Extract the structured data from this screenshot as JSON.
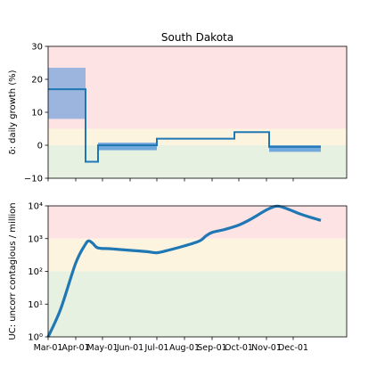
{
  "chart_data": [
    {
      "type": "line",
      "title": "South Dakota",
      "ylabel": "δ: daily growth (%)",
      "ylim": [
        -10,
        30
      ],
      "yticks": [
        "−10",
        "0",
        "10",
        "20",
        "30"
      ],
      "ytick_values": [
        -10,
        0,
        10,
        20,
        30
      ],
      "xlim_days": [
        0,
        335
      ],
      "x_axis_start": "2020-03-01",
      "x_axis_end": "2021-01-01",
      "bands": [
        {
          "name": "high",
          "from": 5,
          "to": 30,
          "color": "#fde3e4"
        },
        {
          "name": "medium",
          "from": 0,
          "to": 5,
          "color": "#fdf4e0"
        },
        {
          "name": "low",
          "from": -10,
          "to": 0,
          "color": "#e6f1e2"
        }
      ],
      "series": [
        {
          "type": "step",
          "color": "#1f77b4",
          "points": [
            [
              "2020-03-01",
              17
            ],
            [
              "2020-04-12",
              17
            ],
            [
              "2020-04-12",
              -5
            ],
            [
              "2020-04-26",
              -5
            ],
            [
              "2020-04-26",
              0
            ],
            [
              "2020-07-01",
              0
            ],
            [
              "2020-07-01",
              2
            ],
            [
              "2020-09-26",
              2
            ],
            [
              "2020-09-26",
              4
            ],
            [
              "2020-11-04",
              4
            ],
            [
              "2020-11-04",
              -0.5
            ],
            [
              "2021-01-01",
              -0.5
            ]
          ]
        }
      ],
      "uncertainty": [
        {
          "from": "2020-03-01",
          "to": "2020-04-12",
          "low": 8,
          "high": 23.5
        },
        {
          "from": "2020-04-26",
          "to": "2020-07-01",
          "low": -1.5,
          "high": 0.8
        },
        {
          "from": "2020-11-04",
          "to": "2021-01-01",
          "low": -2,
          "high": 0
        }
      ],
      "uncertainty_color": "#4a90d9"
    },
    {
      "type": "line",
      "ylabel": "UC: uncorr contagious / million",
      "yscale": "log",
      "ylim": [
        1,
        10000
      ],
      "yticks": [
        "10⁰",
        "10¹",
        "10²",
        "10³",
        "10⁴"
      ],
      "ytick_values": [
        1,
        10,
        100,
        1000,
        10000
      ],
      "xlabels": [
        "Mar-01",
        "Apr-01",
        "May-01",
        "Jun-01",
        "Jul-01",
        "Aug-01",
        "Sep-01",
        "Oct-01",
        "Nov-01",
        "Dec-01"
      ],
      "xlabel_dates": [
        "2020-03-01",
        "2020-04-01",
        "2020-05-01",
        "2020-06-01",
        "2020-07-01",
        "2020-08-01",
        "2020-09-01",
        "2020-10-01",
        "2020-11-01",
        "2020-12-01"
      ],
      "xlim_days": [
        0,
        335
      ],
      "bands": [
        {
          "name": "high",
          "from": 1000,
          "to": 10000,
          "color": "#fde3e4"
        },
        {
          "name": "medium",
          "from": 100,
          "to": 1000,
          "color": "#fdf4e0"
        },
        {
          "name": "low",
          "from": 1,
          "to": 100,
          "color": "#e6f1e2"
        }
      ],
      "series": [
        {
          "type": "line",
          "color": "#1f77b4",
          "points": [
            [
              "2020-03-01",
              1.0
            ],
            [
              "2020-03-15",
              7
            ],
            [
              "2020-04-01",
              180
            ],
            [
              "2020-04-12",
              680
            ],
            [
              "2020-04-16",
              850
            ],
            [
              "2020-04-20",
              720
            ],
            [
              "2020-04-26",
              520
            ],
            [
              "2020-05-10",
              490
            ],
            [
              "2020-06-01",
              440
            ],
            [
              "2020-06-20",
              400
            ],
            [
              "2020-07-01",
              370
            ],
            [
              "2020-07-15",
              450
            ],
            [
              "2020-08-01",
              600
            ],
            [
              "2020-08-18",
              850
            ],
            [
              "2020-08-25",
              1200
            ],
            [
              "2020-09-01",
              1550
            ],
            [
              "2020-09-15",
              1900
            ],
            [
              "2020-10-01",
              2600
            ],
            [
              "2020-10-15",
              4000
            ],
            [
              "2020-11-01",
              7500
            ],
            [
              "2020-11-13",
              9800
            ],
            [
              "2020-11-25",
              8000
            ],
            [
              "2020-12-10",
              5500
            ],
            [
              "2021-01-01",
              3600
            ]
          ]
        }
      ]
    }
  ]
}
